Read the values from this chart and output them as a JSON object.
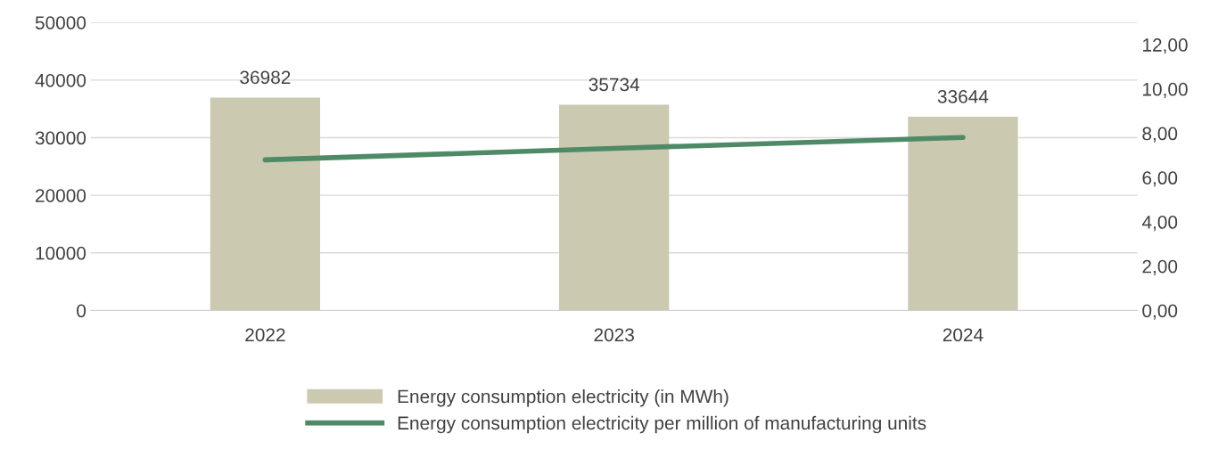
{
  "chart_data": {
    "type": "bar",
    "categories": [
      "2022",
      "2023",
      "2024"
    ],
    "series": [
      {
        "name": "Energy consumption electricity (in MWh)",
        "color": "#cbc9b0",
        "values": [
          36982,
          35734,
          33644
        ]
      },
      {
        "name": "Energy consumption electricity per million of manufacturing units",
        "type": "line",
        "axis": "y2",
        "color": "#4e8a66",
        "values": [
          6.8,
          7.32,
          7.81
        ]
      }
    ],
    "value_labels": [
      "36982",
      "35734",
      "33644"
    ],
    "ylim": [
      0,
      50000
    ],
    "yticks": [
      0,
      10000,
      20000,
      30000,
      40000,
      50000
    ],
    "y2lim": [
      0,
      13
    ],
    "y2ticks": [
      {
        "value": 0,
        "label": "0,00"
      },
      {
        "value": 2,
        "label": "2,00"
      },
      {
        "value": 4,
        "label": "4,00"
      },
      {
        "value": 6,
        "label": "6,00"
      },
      {
        "value": 8,
        "label": "8,00"
      },
      {
        "value": 10,
        "label": "10,00"
      },
      {
        "value": 12,
        "label": "12,00"
      }
    ],
    "grid": "y",
    "legend": "bottom",
    "marker": "none",
    "line_style": "solid"
  }
}
